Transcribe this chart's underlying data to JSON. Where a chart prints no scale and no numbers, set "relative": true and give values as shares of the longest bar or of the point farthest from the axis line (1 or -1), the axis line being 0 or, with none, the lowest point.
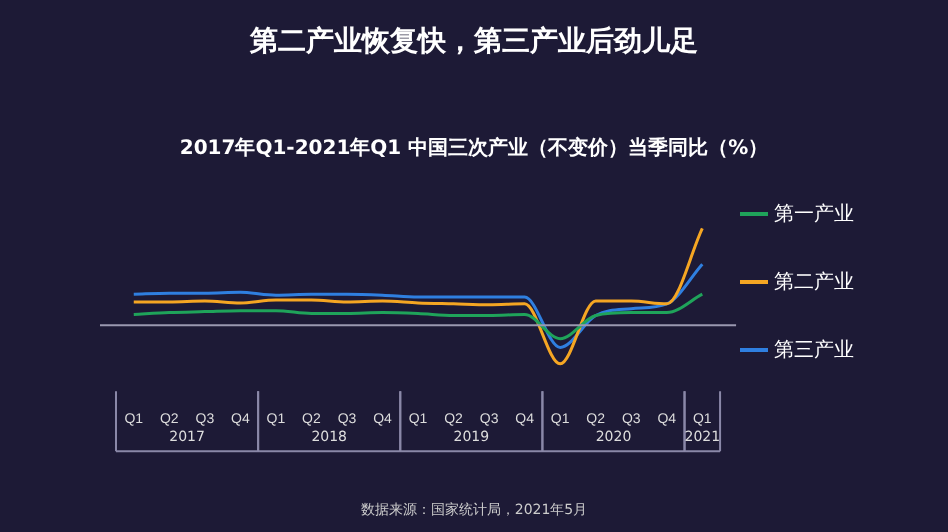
{
  "chart_data": {
    "type": "line",
    "title": "第二产业恢复快，第三产业后劲儿足",
    "subtitle": "2017年Q1-2021年Q1 中国三次产业（不变价）当季同比（%）",
    "relative": true,
    "legend": "right",
    "marker": "none",
    "line_style": "solid",
    "grid": false,
    "categories": [
      "Q1",
      "Q2",
      "Q3",
      "Q4",
      "Q1",
      "Q2",
      "Q3",
      "Q4",
      "Q1",
      "Q2",
      "Q3",
      "Q4",
      "Q1",
      "Q2",
      "Q3",
      "Q4",
      "Q1"
    ],
    "series": [
      {
        "name": "第一产业",
        "color": "#1fa35a",
        "values": [
          0.11,
          0.13,
          0.14,
          0.15,
          0.15,
          0.12,
          0.12,
          0.13,
          0.12,
          0.1,
          0.1,
          0.11,
          -0.14,
          0.1,
          0.13,
          0.13,
          0.32
        ]
      },
      {
        "name": "第二产业",
        "color": "#f5a623",
        "values": [
          0.24,
          0.24,
          0.25,
          0.23,
          0.26,
          0.26,
          0.24,
          0.25,
          0.23,
          0.22,
          0.21,
          0.22,
          -0.4,
          0.25,
          0.25,
          0.22,
          1
        ]
      },
      {
        "name": "第三产业",
        "color": "#2f7fe0",
        "values": [
          0.32,
          0.33,
          0.33,
          0.34,
          0.31,
          0.32,
          0.32,
          0.31,
          0.29,
          0.29,
          0.29,
          0.29,
          -0.23,
          0.1,
          0.17,
          0.22,
          0.63
        ]
      }
    ],
    "annotations": [
      "2017",
      "2018",
      "2019",
      "2020",
      "2021",
      "数据来源：国家统计局，2021年5月"
    ]
  }
}
